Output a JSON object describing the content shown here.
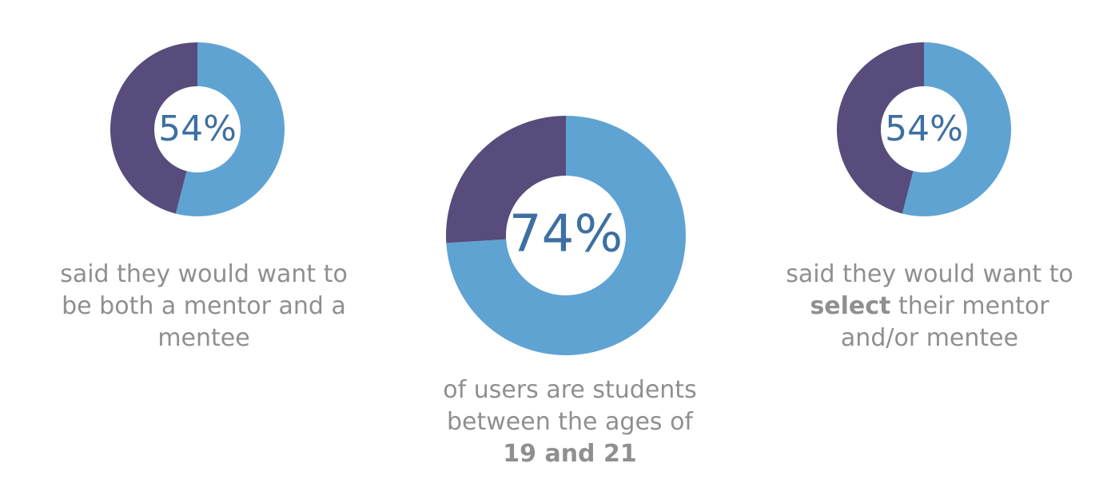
{
  "chart_data": [
    {
      "type": "donut",
      "categories": [
        null,
        null
      ],
      "values": [
        54,
        46
      ],
      "value_labels": [
        "54%",
        null
      ],
      "colors": [
        "#5fa3d3",
        "#574c7c"
      ],
      "caption": [
        [
          {
            "text": "said they would want to"
          }
        ],
        [
          {
            "text": "be both a mentor and a"
          }
        ],
        [
          {
            "text": "mentee"
          }
        ]
      ]
    },
    {
      "type": "donut",
      "categories": [
        null,
        null
      ],
      "values": [
        74,
        26
      ],
      "value_labels": [
        "74%",
        null
      ],
      "colors": [
        "#5fa3d3",
        "#574c7c"
      ],
      "caption": [
        [
          {
            "text": "of users are students"
          }
        ],
        [
          {
            "text": "between the ages of"
          }
        ],
        [
          {
            "text": "19 and 21",
            "bold": true
          }
        ]
      ]
    },
    {
      "type": "donut",
      "categories": [
        null,
        null
      ],
      "values": [
        54,
        46
      ],
      "value_labels": [
        "54%",
        null
      ],
      "colors": [
        "#5fa3d3",
        "#574c7c"
      ],
      "caption": [
        [
          {
            "text": "said they would want to"
          }
        ],
        [
          {
            "text": "select",
            "bold": true
          },
          {
            "text": "their mentor"
          }
        ],
        [
          {
            "text": "and/or mentee"
          }
        ]
      ]
    }
  ]
}
